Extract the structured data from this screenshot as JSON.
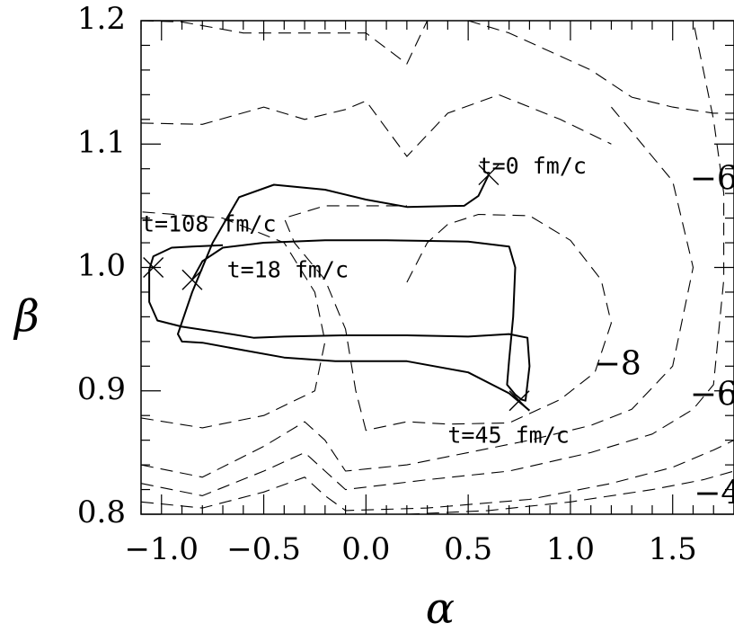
{
  "chart_data": {
    "type": "line",
    "title": "",
    "xlabel": "α",
    "ylabel": "β",
    "xlim": [
      -1.1,
      1.8
    ],
    "ylim": [
      0.8,
      1.2
    ],
    "x_ticks": [
      -1.0,
      -0.5,
      0.0,
      0.5,
      1.0,
      1.5
    ],
    "x_tick_labels": [
      "−1.0",
      "−0.5",
      "0.0",
      "0.5",
      "1.0",
      "1.5"
    ],
    "y_ticks": [
      0.8,
      0.9,
      1.0,
      1.1,
      1.2
    ],
    "y_tick_labels": [
      "0.8",
      "0.9",
      "1.0",
      "1.1",
      "1.2"
    ],
    "grid": false,
    "series": [
      {
        "style": "solid",
        "points": [
          [
            0.6,
            1.075
          ],
          [
            0.55,
            1.058
          ],
          [
            0.48,
            1.05
          ],
          [
            0.2,
            1.049
          ],
          [
            0.0,
            1.055
          ],
          [
            -0.2,
            1.063
          ],
          [
            -0.45,
            1.067
          ],
          [
            -0.62,
            1.057
          ],
          [
            -0.75,
            1.02
          ],
          [
            -0.85,
            0.98
          ],
          [
            -0.92,
            0.946
          ],
          [
            -0.9,
            0.94
          ],
          [
            -0.8,
            0.939
          ],
          [
            -0.6,
            0.933
          ],
          [
            -0.4,
            0.927
          ],
          [
            -0.15,
            0.924
          ],
          [
            0.2,
            0.924
          ],
          [
            0.5,
            0.915
          ],
          [
            0.7,
            0.898
          ],
          [
            0.8,
            0.884
          ]
        ]
      },
      {
        "style": "solid",
        "points": [
          [
            -0.85,
            0.99
          ],
          [
            -0.8,
            1.005
          ],
          [
            -0.7,
            1.016
          ],
          [
            -0.5,
            1.02
          ],
          [
            -0.2,
            1.022
          ],
          [
            0.1,
            1.022
          ],
          [
            0.5,
            1.021
          ],
          [
            0.7,
            1.017
          ],
          [
            0.73,
            1.0
          ],
          [
            0.72,
            0.96
          ],
          [
            0.7,
            0.925
          ],
          [
            0.69,
            0.905
          ],
          [
            0.73,
            0.897
          ],
          [
            0.76,
            0.893
          ],
          [
            0.78,
            0.892
          ],
          [
            0.8,
            0.92
          ],
          [
            0.79,
            0.943
          ],
          [
            0.7,
            0.946
          ],
          [
            0.5,
            0.944
          ],
          [
            0.2,
            0.945
          ],
          [
            -0.1,
            0.945
          ],
          [
            -0.4,
            0.944
          ],
          [
            -0.55,
            0.943
          ],
          [
            -0.7,
            0.947
          ],
          [
            -0.9,
            0.952
          ],
          [
            -1.02,
            0.957
          ],
          [
            -1.06,
            0.972
          ],
          [
            -1.06,
            0.998
          ],
          [
            -1.04,
            1.009
          ],
          [
            -0.95,
            1.016
          ],
          [
            -0.85,
            1.017
          ],
          [
            -0.7,
            1.018
          ]
        ]
      },
      {
        "style": "dashed",
        "points": [
          [
            -1.1,
            1.117
          ],
          [
            -0.8,
            1.116
          ],
          [
            -0.5,
            1.13
          ],
          [
            -0.3,
            1.12
          ],
          [
            -0.1,
            1.128
          ],
          [
            0.0,
            1.135
          ],
          [
            0.2,
            1.09
          ],
          [
            0.4,
            1.125
          ],
          [
            0.65,
            1.14
          ],
          [
            0.95,
            1.12
          ],
          [
            1.2,
            1.1
          ]
        ]
      },
      {
        "style": "dashed",
        "points": [
          [
            -1.1,
            1.2
          ],
          [
            -0.9,
            1.199
          ],
          [
            -0.6,
            1.19
          ],
          [
            -0.3,
            1.19
          ],
          [
            0.0,
            1.19
          ],
          [
            0.2,
            1.165
          ],
          [
            0.3,
            1.2
          ]
        ]
      },
      {
        "style": "dashed",
        "points": [
          [
            0.5,
            1.2
          ],
          [
            0.7,
            1.19
          ],
          [
            0.9,
            1.175
          ],
          [
            1.1,
            1.16
          ],
          [
            1.3,
            1.138
          ],
          [
            1.5,
            1.13
          ],
          [
            1.7,
            1.125
          ],
          [
            1.8,
            1.125
          ]
        ]
      },
      {
        "style": "dashed",
        "points": [
          [
            0.2,
            0.988
          ],
          [
            0.3,
            1.02
          ],
          [
            0.4,
            1.035
          ],
          [
            0.55,
            1.043
          ],
          [
            0.8,
            1.042
          ],
          [
            1.0,
            1.022
          ],
          [
            1.15,
            0.99
          ],
          [
            1.2,
            0.955
          ],
          [
            1.12,
            0.915
          ],
          [
            0.95,
            0.893
          ],
          [
            0.7,
            0.874
          ],
          [
            0.4,
            0.873
          ],
          [
            0.2,
            0.875
          ],
          [
            0.0,
            0.868
          ],
          [
            -0.05,
            0.9
          ],
          [
            -0.1,
            0.95
          ],
          [
            -0.2,
            0.99
          ],
          [
            -0.35,
            1.02
          ],
          [
            -0.4,
            1.04
          ],
          [
            -0.2,
            1.05
          ],
          [
            0.2,
            1.05
          ]
        ]
      },
      {
        "style": "dashed",
        "points": [
          [
            -1.1,
            0.878
          ],
          [
            -0.8,
            0.87
          ],
          [
            -0.5,
            0.88
          ],
          [
            -0.25,
            0.9
          ],
          [
            -0.2,
            0.94
          ],
          [
            -0.25,
            0.98
          ],
          [
            -0.4,
            1.02
          ],
          [
            -0.7,
            1.04
          ],
          [
            -1.1,
            1.045
          ]
        ]
      },
      {
        "style": "dashed",
        "points": [
          [
            -1.1,
            0.84
          ],
          [
            -0.8,
            0.83
          ],
          [
            -0.5,
            0.855
          ],
          [
            -0.3,
            0.875
          ],
          [
            -0.2,
            0.86
          ],
          [
            -0.1,
            0.835
          ],
          [
            0.2,
            0.84
          ],
          [
            0.5,
            0.85
          ],
          [
            0.8,
            0.86
          ],
          [
            1.1,
            0.872
          ],
          [
            1.3,
            0.885
          ],
          [
            1.5,
            0.92
          ],
          [
            1.6,
            1.0
          ],
          [
            1.5,
            1.07
          ],
          [
            1.3,
            1.11
          ],
          [
            1.2,
            1.13
          ]
        ]
      },
      {
        "style": "dashed",
        "points": [
          [
            -1.1,
            0.825
          ],
          [
            -0.8,
            0.815
          ],
          [
            -0.5,
            0.835
          ],
          [
            -0.3,
            0.85
          ],
          [
            -0.2,
            0.835
          ],
          [
            -0.1,
            0.82
          ],
          [
            0.3,
            0.828
          ],
          [
            0.7,
            0.835
          ],
          [
            1.1,
            0.85
          ],
          [
            1.4,
            0.865
          ],
          [
            1.6,
            0.885
          ],
          [
            1.7,
            0.905
          ],
          [
            1.75,
            0.99
          ],
          [
            1.75,
            1.06
          ],
          [
            1.7,
            1.12
          ],
          [
            1.6,
            1.2
          ]
        ]
      },
      {
        "style": "dashed",
        "points": [
          [
            -1.1,
            0.81
          ],
          [
            -0.8,
            0.805
          ],
          [
            -0.5,
            0.818
          ],
          [
            -0.3,
            0.83
          ],
          [
            -0.2,
            0.815
          ],
          [
            -0.1,
            0.803
          ],
          [
            0.3,
            0.805
          ],
          [
            0.8,
            0.812
          ],
          [
            1.2,
            0.825
          ],
          [
            1.5,
            0.838
          ],
          [
            1.7,
            0.852
          ],
          [
            1.8,
            0.86
          ]
        ]
      },
      {
        "style": "dashed",
        "points": [
          [
            0.2,
            0.8
          ],
          [
            0.6,
            0.803
          ],
          [
            1.0,
            0.81
          ],
          [
            1.4,
            0.82
          ],
          [
            1.65,
            0.828
          ],
          [
            1.8,
            0.835
          ]
        ]
      }
    ],
    "markers": [
      {
        "type": "x",
        "x": 0.6,
        "y": 1.075
      },
      {
        "type": "x",
        "x": -1.04,
        "y": 1.0
      },
      {
        "type": "x",
        "x": -0.85,
        "y": 0.99
      },
      {
        "type": "x",
        "x": 0.75,
        "y": 0.892
      }
    ],
    "annotations": [
      {
        "text": "t=0 fm/c",
        "x": 0.55,
        "y": 1.076
      },
      {
        "text": "t=108 fm/c",
        "x": -1.1,
        "y": 1.029
      },
      {
        "text": "t=18 fm/c",
        "x": -0.68,
        "y": 0.992
      },
      {
        "text": "t=45 fm/c",
        "x": 0.4,
        "y": 0.858
      }
    ],
    "contour_labels": [
      {
        "text": "−6",
        "x": 1.7,
        "y": 1.07
      },
      {
        "text": "−8",
        "x": 1.23,
        "y": 0.92
      },
      {
        "text": "−6",
        "x": 1.7,
        "y": 0.895
      },
      {
        "text": "−4",
        "x": 1.72,
        "y": 0.815
      }
    ]
  }
}
